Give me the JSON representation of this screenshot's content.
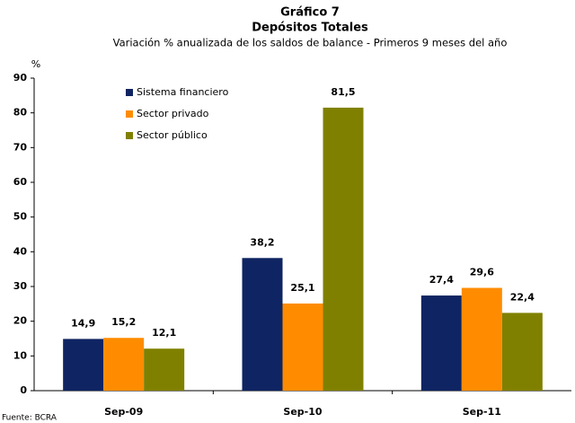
{
  "chart_data": {
    "type": "bar",
    "title": "Gráfico 7",
    "subtitle": "Depósitos Totales",
    "description": "Variación % anualizada de los saldos de balance - Primeros 9 meses del año",
    "y_label": "%",
    "source": "Fuente: BCRA",
    "categories": [
      "Sep-09",
      "Sep-10",
      "Sep-11"
    ],
    "series": [
      {
        "name": "Sistema financiero",
        "color": "#0f2462",
        "values": [
          14.9,
          38.2,
          27.4
        ],
        "value_labels": [
          "14,9",
          "38,2",
          "27,4"
        ]
      },
      {
        "name": "Sector privado",
        "color": "#ff8c00",
        "values": [
          15.2,
          25.1,
          29.6
        ],
        "value_labels": [
          "15,2",
          "25,1",
          "29,6"
        ]
      },
      {
        "name": "Sector público",
        "color": "#808000",
        "values": [
          12.1,
          81.5,
          22.4
        ],
        "value_labels": [
          "12,1",
          "81,5",
          "22,4"
        ]
      }
    ],
    "ylim": [
      0,
      90
    ],
    "yticks": [
      0,
      10,
      20,
      30,
      40,
      50,
      60,
      70,
      80,
      90
    ],
    "grid": false,
    "legend": "top-left"
  }
}
